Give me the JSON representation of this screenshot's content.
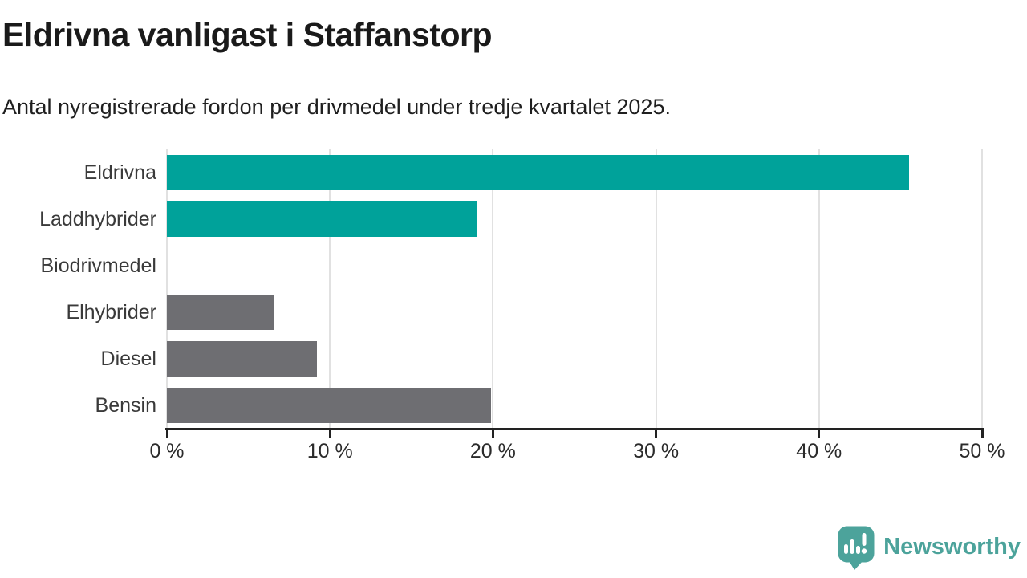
{
  "header": {
    "title": "Eldrivna vanligast i Staffanstorp",
    "subtitle": "Antal nyregistrerade fordon per drivmedel under tredje kvartalet 2025."
  },
  "chart_data": {
    "type": "bar",
    "orientation": "horizontal",
    "title": "Eldrivna vanligast i Staffanstorp",
    "xlabel": "",
    "ylabel": "",
    "unit": "%",
    "categories": [
      "Eldrivna",
      "Laddhybrider",
      "Biodrivmedel",
      "Elhybrider",
      "Diesel",
      "Bensin"
    ],
    "values": [
      45.5,
      19.0,
      0.0,
      6.6,
      9.2,
      19.9
    ],
    "bar_colors": [
      "#00A29A",
      "#00A29A",
      "#6E6E72",
      "#6E6E72",
      "#6E6E72",
      "#6E6E72"
    ],
    "highlight_color": "#00A29A",
    "default_color": "#6E6E72",
    "xlim": [
      0,
      50
    ],
    "x_tick_values": [
      0,
      10,
      20,
      30,
      40,
      50
    ],
    "x_tick_labels": [
      "0 %",
      "10 %",
      "20 %",
      "30 %",
      "40 %",
      "50 %"
    ],
    "grid": true,
    "gridline_color": "#e1e1e1",
    "axis_color": "#222222",
    "legend_position": "none"
  },
  "footer": {
    "brand": "Newsworthy",
    "brand_color": "#4CA39B",
    "logo_icon": "newsworthy-bubble-chart-icon"
  }
}
